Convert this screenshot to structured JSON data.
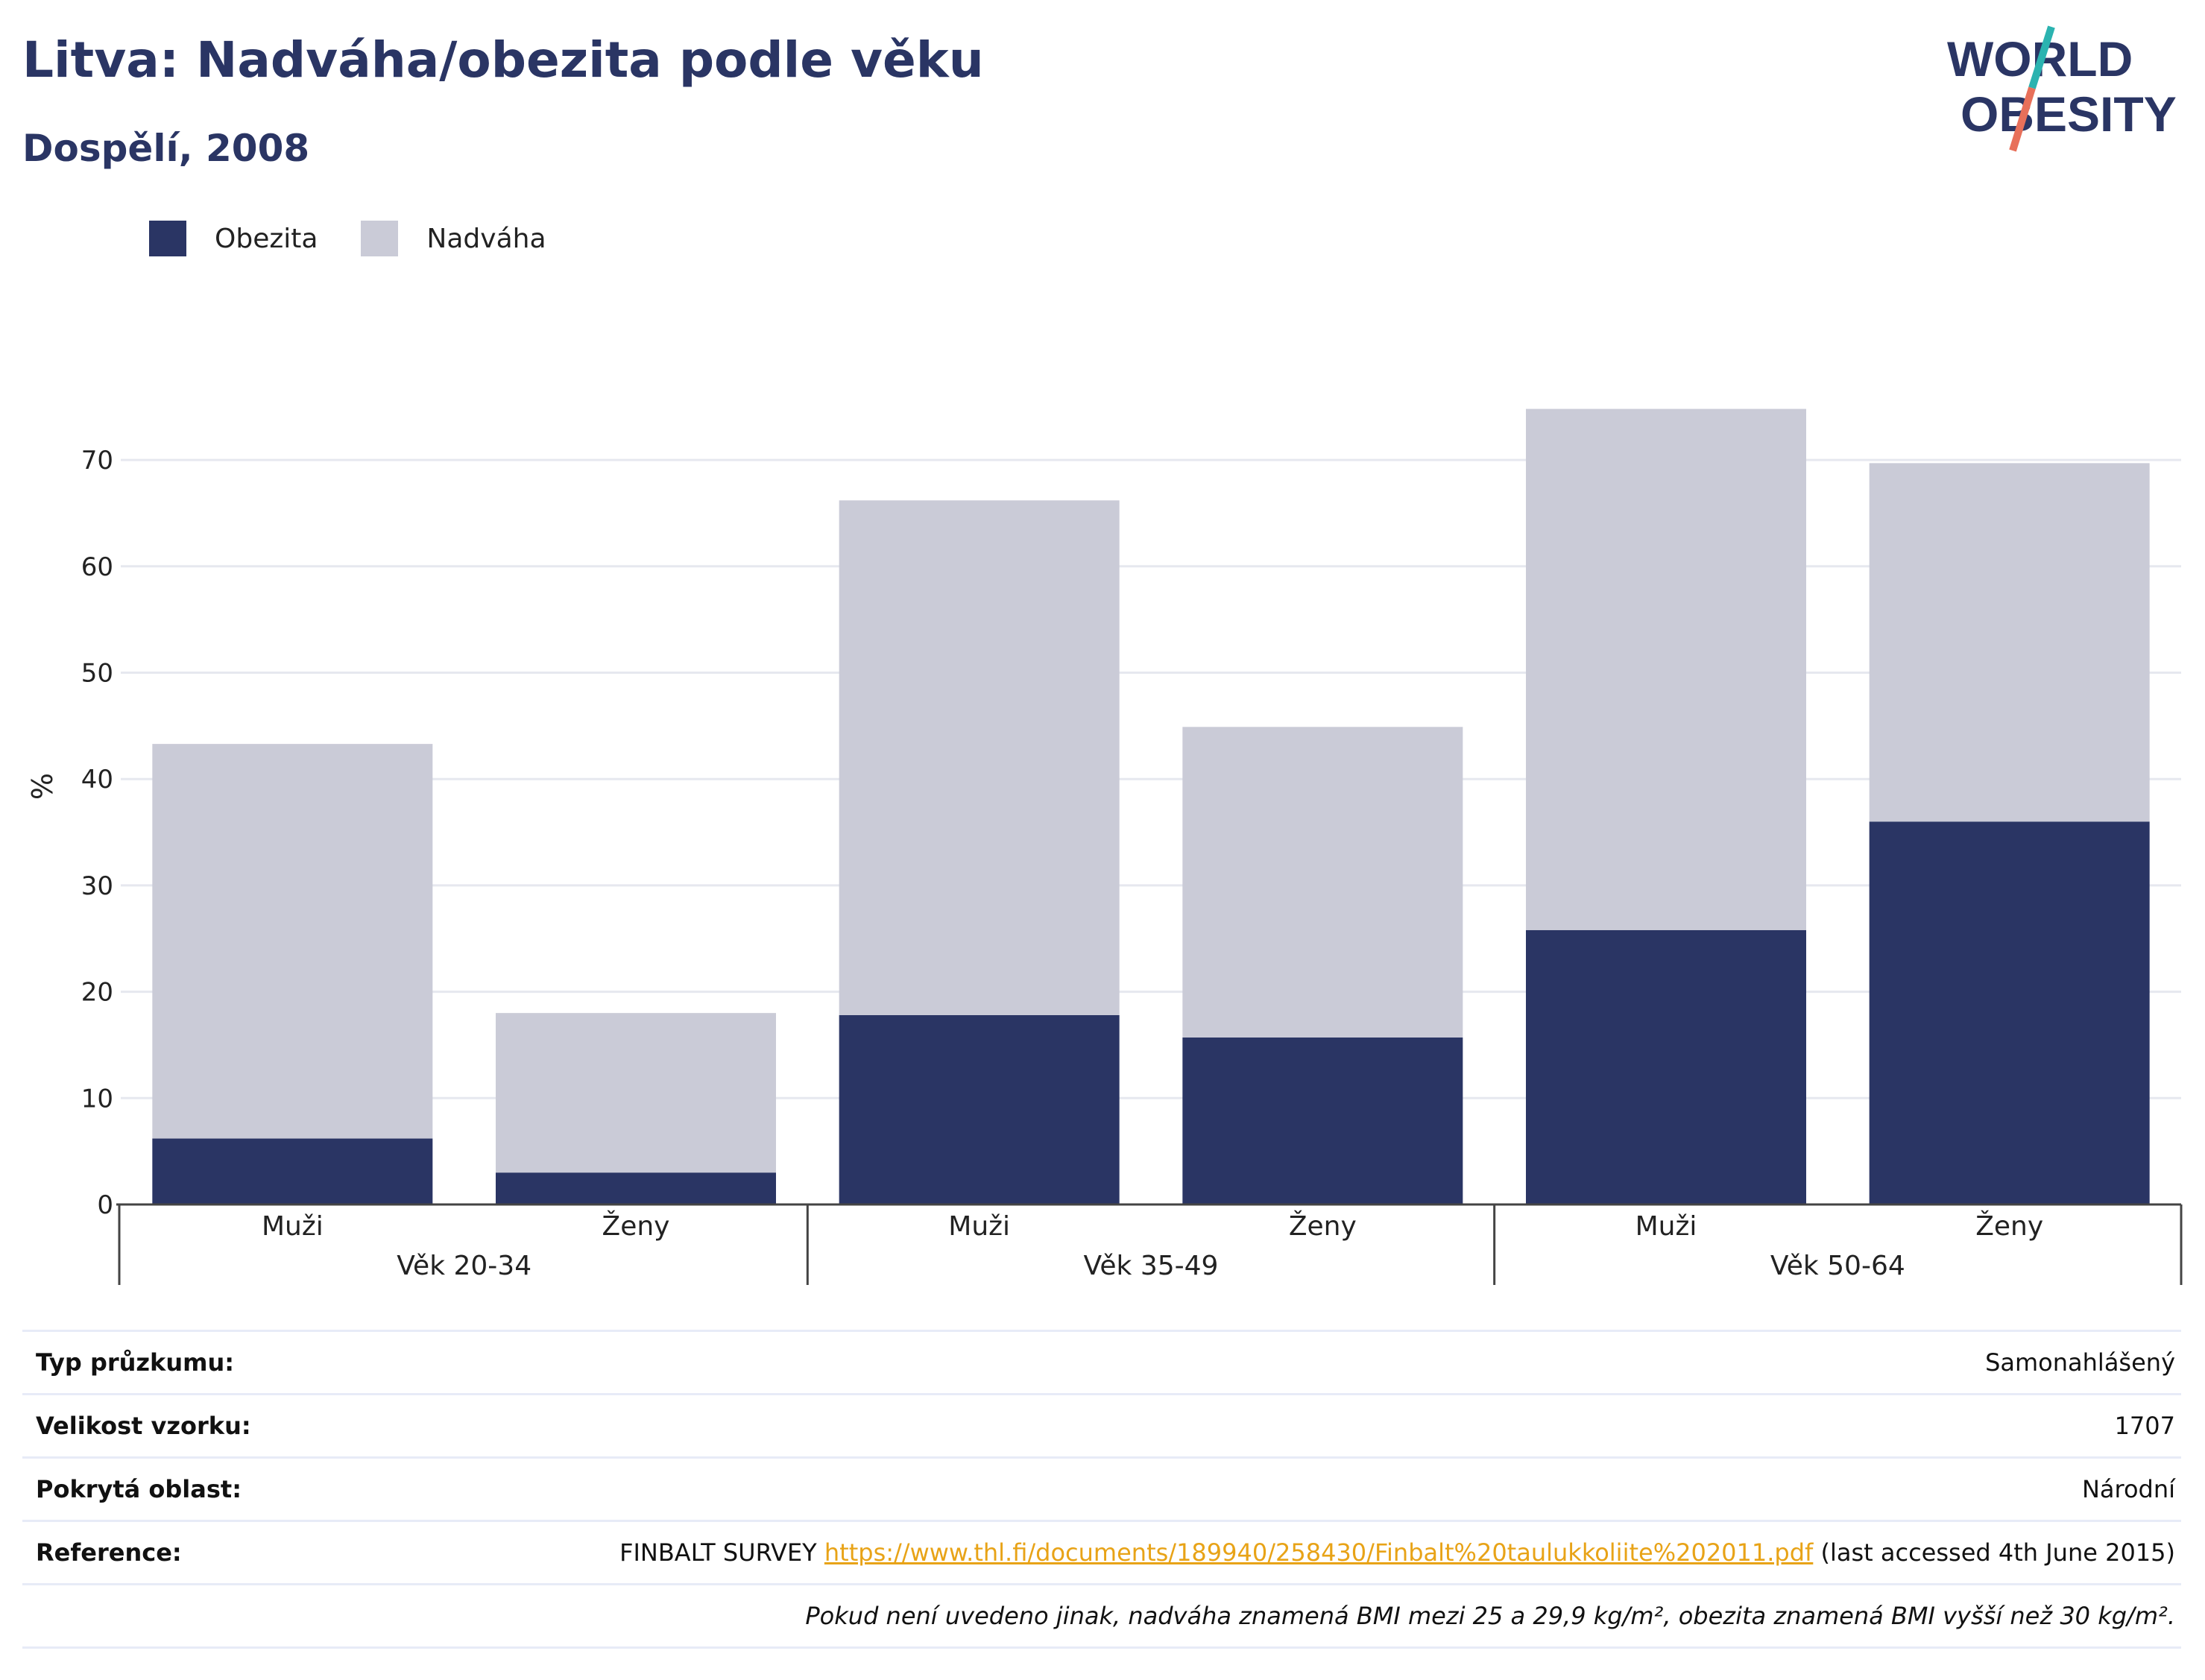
{
  "header": {
    "title": "Litva: Nadváha/obezita podle věku",
    "subtitle": "Dospělí, 2008"
  },
  "logo": {
    "line1": "WORLD",
    "line2": "OBESITY"
  },
  "legend": [
    {
      "label": "Obezita",
      "color": "#2a3564"
    },
    {
      "label": "Nadváha",
      "color": "#cacbd7"
    }
  ],
  "chart_data": {
    "type": "bar",
    "stacked": true,
    "ylabel": "%",
    "ylim": [
      0,
      78
    ],
    "yticks": [
      0,
      10,
      20,
      30,
      40,
      50,
      60,
      70
    ],
    "grid": true,
    "legend_position": "top-left",
    "categories": [
      "Muži",
      "Ženy",
      "Muži",
      "Ženy",
      "Muži",
      "Ženy"
    ],
    "groups": [
      {
        "label": "Věk 20-34",
        "span": [
          0,
          1
        ]
      },
      {
        "label": "Věk 35-49",
        "span": [
          2,
          3
        ]
      },
      {
        "label": "Věk 50-64",
        "span": [
          4,
          5
        ]
      }
    ],
    "series": [
      {
        "name": "Obezita",
        "color": "#2a3564",
        "values": [
          6.2,
          3.0,
          17.8,
          15.7,
          25.8,
          36.0
        ]
      },
      {
        "name": "Nadváha",
        "color": "#cacbd7",
        "values": [
          37.1,
          15.0,
          48.4,
          29.2,
          49.0,
          33.7
        ]
      }
    ]
  },
  "info": {
    "survey_type_label": "Typ průzkumu:",
    "survey_type_value": "Samonahlášený",
    "sample_size_label": "Velikost vzorku:",
    "sample_size_value": "1707",
    "area_label": "Pokrytá oblast:",
    "area_value": "Národní",
    "reference_label": "Reference:",
    "reference_prefix": "FINBALT SURVEY",
    "reference_link": "https://www.thl.fi/documents/189940/258430/Finbalt%20taulukkoliite%202011.pdf",
    "reference_suffix": "(last accessed 4th June 2015)",
    "footnote": "Pokud není uvedeno jinak, nadváha znamená BMI mezi 25 a 29,9 kg/m², obezita znamená BMI vyšší než 30 kg/m²."
  }
}
